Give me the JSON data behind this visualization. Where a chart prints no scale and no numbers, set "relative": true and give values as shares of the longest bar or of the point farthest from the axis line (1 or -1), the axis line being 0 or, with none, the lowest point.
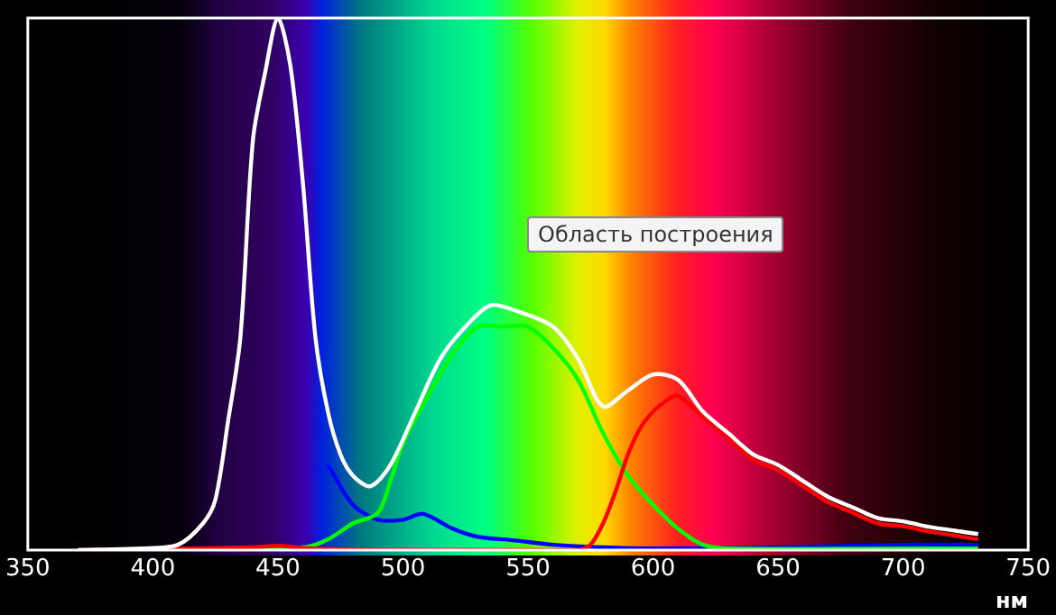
{
  "chart_data": {
    "type": "line",
    "relative": true,
    "xlabel": "нм",
    "xlim": [
      350,
      750
    ],
    "xticks": [
      350,
      400,
      450,
      500,
      550,
      600,
      650,
      700,
      750
    ],
    "grid": false,
    "legend": false,
    "marker": "none",
    "line_style": "solid",
    "annotations": [
      "Область построения"
    ],
    "series": [
      {
        "color": "#ffffff",
        "x": [
          370,
          395,
          410,
          420,
          425,
          430,
          435,
          440,
          445,
          450,
          455,
          460,
          465,
          470,
          475,
          480,
          487,
          495,
          505,
          515,
          525,
          535,
          545,
          560,
          570,
          580,
          590,
          600,
          610,
          620,
          630,
          640,
          650,
          660,
          670,
          680,
          690,
          700,
          710,
          720,
          730
        ],
        "values": [
          0,
          0.003,
          0.01,
          0.05,
          0.095,
          0.24,
          0.4,
          0.77,
          0.9,
          1,
          0.91,
          0.69,
          0.4,
          0.26,
          0.18,
          0.14,
          0.12,
          0.16,
          0.26,
          0.36,
          0.42,
          0.46,
          0.45,
          0.42,
          0.36,
          0.27,
          0.3,
          0.33,
          0.32,
          0.26,
          0.22,
          0.18,
          0.16,
          0.13,
          0.1,
          0.08,
          0.06,
          0.054,
          0.044,
          0.037,
          0.03
        ]
      },
      {
        "color": "#ff0000",
        "x": [
          370,
          440,
          450,
          460,
          500,
          570,
          575,
          580,
          585,
          590,
          595,
          600,
          605,
          610,
          620,
          630,
          640,
          650,
          660,
          670,
          680,
          690,
          700,
          710,
          720,
          730
        ],
        "values": [
          0,
          0.005,
          0.008,
          0.004,
          0,
          0,
          0.01,
          0.05,
          0.11,
          0.18,
          0.23,
          0.26,
          0.28,
          0.29,
          0.25,
          0.21,
          0.17,
          0.15,
          0.12,
          0.09,
          0.07,
          0.05,
          0.045,
          0.035,
          0.028,
          0.02
        ]
      },
      {
        "color": "#00ff00",
        "x": [
          400,
          460,
          470,
          480,
          490,
          495,
          500,
          510,
          520,
          530,
          540,
          550,
          560,
          570,
          580,
          590,
          600,
          610,
          620,
          630,
          700,
          730
        ],
        "values": [
          0,
          0.005,
          0.02,
          0.05,
          0.07,
          0.13,
          0.2,
          0.29,
          0.37,
          0.42,
          0.42,
          0.42,
          0.38,
          0.32,
          0.22,
          0.14,
          0.085,
          0.04,
          0.01,
          0.003,
          0.003,
          0.003
        ]
      },
      {
        "color": "#0000ff",
        "x": [
          470,
          480,
          490,
          500,
          508,
          520,
          530,
          545,
          560,
          580,
          600,
          650,
          700,
          730
        ],
        "values": [
          0.16,
          0.085,
          0.057,
          0.057,
          0.068,
          0.04,
          0.025,
          0.018,
          0.01,
          0.005,
          0.003,
          0.005,
          0.01,
          0.01
        ]
      }
    ]
  }
}
